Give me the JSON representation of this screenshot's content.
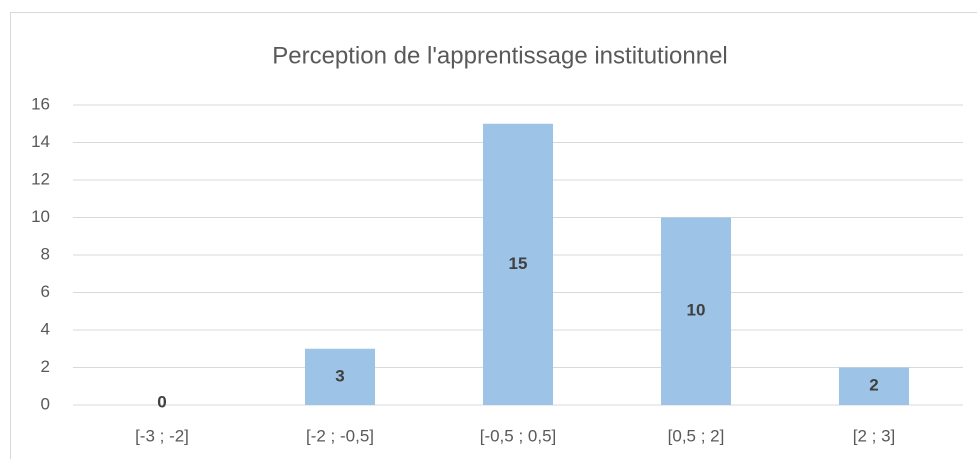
{
  "chart_data": {
    "type": "bar",
    "title": "Perception de l'apprentissage institutionnel",
    "categories": [
      "[-3 ; -2]",
      "[-2 ; -0,5]",
      "[-0,5 ; 0,5]",
      "[0,5 ; 2]",
      "[2 ; 3]"
    ],
    "values": [
      0,
      3,
      15,
      10,
      2
    ],
    "color": "#9dc3e6",
    "ylim": [
      0,
      16
    ],
    "yticks": [
      0,
      2,
      4,
      6,
      8,
      10,
      12,
      14,
      16
    ],
    "grid": true
  }
}
